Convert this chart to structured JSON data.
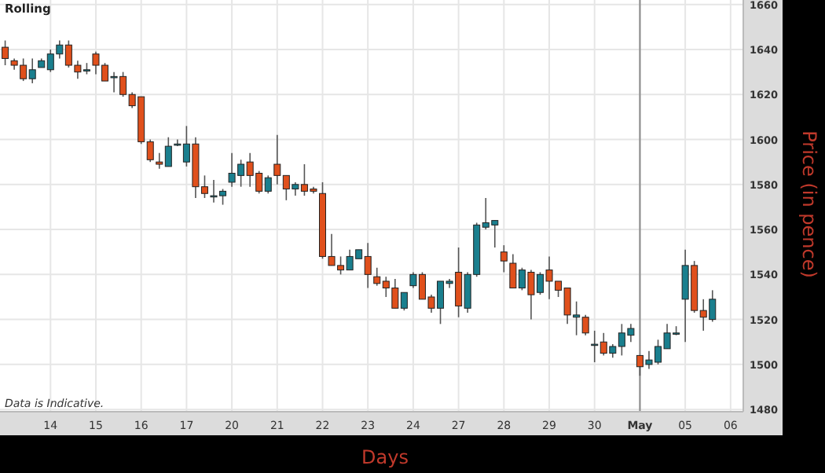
{
  "chart_data": {
    "type": "candlestick",
    "title": "Rolling",
    "xlabel": "Days",
    "ylabel": "Price (in pence)",
    "annotations": [
      "Data is Indicative."
    ],
    "categories": [
      null,
      null,
      null,
      null,
      null,
      "14",
      null,
      null,
      null,
      null,
      "15",
      null,
      null,
      null,
      null,
      "16",
      null,
      null,
      null,
      null,
      "17",
      null,
      null,
      null,
      null,
      "20",
      null,
      null,
      null,
      null,
      "21",
      null,
      null,
      null,
      null,
      "22",
      null,
      null,
      null,
      null,
      "23",
      null,
      null,
      null,
      null,
      "24",
      null,
      null,
      null,
      null,
      "27",
      null,
      null,
      null,
      null,
      "28",
      null,
      null,
      null,
      null,
      "29",
      null,
      null,
      null,
      null,
      "30",
      null,
      null,
      null,
      null,
      "May",
      null,
      null,
      null,
      null,
      "05",
      null,
      null,
      null,
      null,
      "06"
    ],
    "ohlc": [
      [
        1641,
        1644,
        1633,
        1636
      ],
      [
        1635,
        1636,
        1631,
        1633
      ],
      [
        1633,
        1636,
        1626,
        1627
      ],
      [
        1627,
        1636,
        1625,
        1631
      ],
      [
        1632,
        1636,
        1632,
        1635
      ],
      [
        1631,
        1640,
        1630,
        1638
      ],
      [
        1638,
        1644,
        1636,
        1642
      ],
      [
        1642,
        1644,
        1632,
        1633
      ],
      [
        1633,
        1635,
        1627,
        1630
      ],
      [
        1631,
        1634,
        1629,
        1631
      ],
      [
        1638,
        1639,
        1629,
        1633
      ],
      [
        1633,
        1634,
        1626,
        1626
      ],
      [
        1628,
        1630,
        1621,
        1628
      ],
      [
        1628,
        1630,
        1619,
        1620
      ],
      [
        1620,
        1621,
        1614,
        1615
      ],
      [
        1619,
        1619,
        1598,
        1599
      ],
      [
        1599,
        1600,
        1590,
        1591
      ],
      [
        1590,
        1594,
        1587,
        1589
      ],
      [
        1588,
        1601,
        1588,
        1597
      ],
      [
        1598,
        1600,
        1597,
        1598
      ],
      [
        1590,
        1606,
        1588,
        1598
      ],
      [
        1598,
        1601,
        1574,
        1579
      ],
      [
        1579,
        1584,
        1574,
        1576
      ],
      [
        1575,
        1582,
        1572,
        1575
      ],
      [
        1575,
        1578,
        1571,
        1577
      ],
      [
        1581,
        1594,
        1579,
        1585
      ],
      [
        1584,
        1591,
        1579,
        1589
      ],
      [
        1590,
        1594,
        1579,
        1584
      ],
      [
        1585,
        1586,
        1576,
        1577
      ],
      [
        1577,
        1584,
        1576,
        1583
      ],
      [
        1589,
        1602,
        1580,
        1584
      ],
      [
        1584,
        1584,
        1573,
        1578
      ],
      [
        1578,
        1581,
        1575,
        1580
      ],
      [
        1580,
        1589,
        1575,
        1577
      ],
      [
        1578,
        1579,
        1576,
        1577
      ],
      [
        1576,
        1581,
        1547,
        1548
      ],
      [
        1548,
        1558,
        1544,
        1544
      ],
      [
        1544,
        1548,
        1540,
        1542
      ],
      [
        1542,
        1551,
        1542,
        1548
      ],
      [
        1547,
        1551,
        1547,
        1551
      ],
      [
        1548,
        1554,
        1534,
        1540
      ],
      [
        1539,
        1543,
        1535,
        1536
      ],
      [
        1537,
        1539,
        1530,
        1534
      ],
      [
        1534,
        1538,
        1525,
        1525
      ],
      [
        1525,
        1532,
        1524,
        1532
      ],
      [
        1535,
        1541,
        1534,
        1540
      ],
      [
        1540,
        1541,
        1529,
        1529
      ],
      [
        1530,
        1531,
        1523,
        1525
      ],
      [
        1525,
        1537,
        1518,
        1537
      ],
      [
        1536,
        1538,
        1534,
        1537
      ],
      [
        1541,
        1552,
        1521,
        1526
      ],
      [
        1525,
        1541,
        1523,
        1540
      ],
      [
        1540,
        1563,
        1539,
        1562
      ],
      [
        1561,
        1574,
        1560,
        1563
      ],
      [
        1562,
        1564,
        1552,
        1564
      ],
      [
        1550,
        1553,
        1541,
        1546
      ],
      [
        1545,
        1549,
        1534,
        1534
      ],
      [
        1534,
        1543,
        1533,
        1542
      ],
      [
        1541,
        1542,
        1520,
        1531
      ],
      [
        1532,
        1541,
        1531,
        1540
      ],
      [
        1542,
        1548,
        1529,
        1537
      ],
      [
        1537,
        1537,
        1530,
        1533
      ],
      [
        1534,
        1534,
        1518,
        1522
      ],
      [
        1521,
        1528,
        1513,
        1522
      ],
      [
        1521,
        1522,
        1513,
        1514
      ],
      [
        1509,
        1515,
        1501,
        1509
      ],
      [
        1510,
        1514,
        1504,
        1505
      ],
      [
        1505,
        1509,
        1503,
        1508
      ],
      [
        1508,
        1518,
        1504,
        1514
      ],
      [
        1513,
        1518,
        1510,
        1516
      ],
      [
        1504,
        1504,
        1495,
        1499
      ],
      [
        1500,
        1506,
        1498,
        1502
      ],
      [
        1501,
        1511,
        1500,
        1508
      ],
      [
        1507,
        1518,
        1507,
        1514
      ],
      [
        1514,
        1517,
        1513,
        1514
      ],
      [
        1529,
        1551,
        1510,
        1544
      ],
      [
        1544,
        1546,
        1523,
        1524
      ],
      [
        1524,
        1529,
        1515,
        1521
      ],
      [
        1520,
        1533,
        1519,
        1529
      ],
      null,
      null
    ],
    "colors": [
      "#e0501c",
      "#e0501c",
      "#e0501c",
      "#1a7f8e",
      "#1a7f8e",
      "#1a7f8e",
      "#1a7f8e",
      "#e0501c",
      "#e0501c",
      "#1a7f8e",
      "#e0501c",
      "#e0501c",
      "#1a7f8e",
      "#e0501c",
      "#e0501c",
      "#e0501c",
      "#e0501c",
      "#e0501c",
      "#1a7f8e",
      "#1a7f8e",
      "#1a7f8e",
      "#e0501c",
      "#e0501c",
      "#1a7f8e",
      "#1a7f8e",
      "#1a7f8e",
      "#1a7f8e",
      "#e0501c",
      "#e0501c",
      "#1a7f8e",
      "#e0501c",
      "#e0501c",
      "#1a7f8e",
      "#e0501c",
      "#e0501c",
      "#e0501c",
      "#e0501c",
      "#e0501c",
      "#1a7f8e",
      "#1a7f8e",
      "#e0501c",
      "#e0501c",
      "#e0501c",
      "#e0501c",
      "#1a7f8e",
      "#1a7f8e",
      "#e0501c",
      "#e0501c",
      "#1a7f8e",
      "#1a7f8e",
      "#e0501c",
      "#1a7f8e",
      "#1a7f8e",
      "#1a7f8e",
      "#1a7f8e",
      "#e0501c",
      "#e0501c",
      "#1a7f8e",
      "#e0501c",
      "#1a7f8e",
      "#e0501c",
      "#e0501c",
      "#e0501c",
      "#1a7f8e",
      "#e0501c",
      "#1a7f8e",
      "#e0501c",
      "#1a7f8e",
      "#1a7f8e",
      "#1a7f8e",
      "#e0501c",
      "#1a7f8e",
      "#1a7f8e",
      "#1a7f8e",
      "#1a7f8e",
      "#1a7f8e",
      "#e0501c",
      "#e0501c",
      "#1a7f8e",
      null,
      null
    ],
    "ylim": [
      1479,
      1662
    ],
    "yticks": [
      1480,
      1500,
      1520,
      1540,
      1560,
      1580,
      1600,
      1620,
      1640,
      1660
    ],
    "grid": true,
    "ref_lines": [
      {
        "axis": "x",
        "value": "May",
        "color": "#888888"
      }
    ]
  }
}
